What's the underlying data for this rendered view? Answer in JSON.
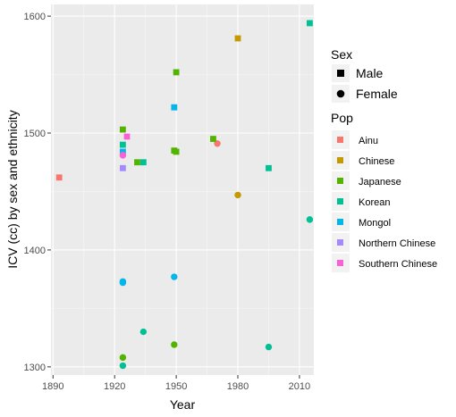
{
  "chart_data": {
    "type": "scatter",
    "xlabel": "Year",
    "ylabel": "ICV (cc) by sex and ethnicity",
    "xlim": [
      1889,
      2017
    ],
    "ylim": [
      1293,
      1610
    ],
    "x_ticks": [
      1890,
      1920,
      1950,
      1980,
      2010
    ],
    "y_ticks": [
      1300,
      1400,
      1500,
      1600
    ],
    "grid": true,
    "legend_placement": "right",
    "legend_sex": {
      "title": "Sex",
      "entries": [
        {
          "label": "Male",
          "shape": "square"
        },
        {
          "label": "Female",
          "shape": "circle"
        }
      ]
    },
    "legend_pop": {
      "title": "Pop",
      "entries": [
        {
          "label": "Ainu",
          "color": "#F8766D"
        },
        {
          "label": "Chinese",
          "color": "#C49A00"
        },
        {
          "label": "Japanese",
          "color": "#53B400"
        },
        {
          "label": "Korean",
          "color": "#00C094"
        },
        {
          "label": "Mongol",
          "color": "#00B6EB"
        },
        {
          "label": "Northern Chinese",
          "color": "#A58AFF"
        },
        {
          "label": "Southern Chinese",
          "color": "#FB61D7"
        }
      ]
    },
    "points": [
      {
        "x": 1893,
        "y": 1462,
        "pop": "Ainu",
        "sex": "Male"
      },
      {
        "x": 1970,
        "y": 1491,
        "pop": "Ainu",
        "sex": "Female"
      },
      {
        "x": 1980,
        "y": 1581,
        "pop": "Chinese",
        "sex": "Male"
      },
      {
        "x": 1980,
        "y": 1447,
        "pop": "Chinese",
        "sex": "Female"
      },
      {
        "x": 1924,
        "y": 1503,
        "pop": "Japanese",
        "sex": "Male"
      },
      {
        "x": 1931,
        "y": 1475,
        "pop": "Japanese",
        "sex": "Male"
      },
      {
        "x": 1949,
        "y": 1485,
        "pop": "Japanese",
        "sex": "Male"
      },
      {
        "x": 1950,
        "y": 1484,
        "pop": "Japanese",
        "sex": "Male"
      },
      {
        "x": 1950,
        "y": 1552,
        "pop": "Japanese",
        "sex": "Male"
      },
      {
        "x": 1968,
        "y": 1495,
        "pop": "Japanese",
        "sex": "Male"
      },
      {
        "x": 1924,
        "y": 1308,
        "pop": "Japanese",
        "sex": "Female"
      },
      {
        "x": 1949,
        "y": 1319,
        "pop": "Japanese",
        "sex": "Female"
      },
      {
        "x": 1924,
        "y": 1490,
        "pop": "Korean",
        "sex": "Male"
      },
      {
        "x": 1934,
        "y": 1475,
        "pop": "Korean",
        "sex": "Male"
      },
      {
        "x": 1995,
        "y": 1470,
        "pop": "Korean",
        "sex": "Male"
      },
      {
        "x": 2015,
        "y": 1594,
        "pop": "Korean",
        "sex": "Male"
      },
      {
        "x": 1924,
        "y": 1301,
        "pop": "Korean",
        "sex": "Female"
      },
      {
        "x": 1934,
        "y": 1330,
        "pop": "Korean",
        "sex": "Female"
      },
      {
        "x": 1995,
        "y": 1317,
        "pop": "Korean",
        "sex": "Female"
      },
      {
        "x": 2015,
        "y": 1426,
        "pop": "Korean",
        "sex": "Female"
      },
      {
        "x": 1924,
        "y": 1484,
        "pop": "Mongol",
        "sex": "Male"
      },
      {
        "x": 1949,
        "y": 1522,
        "pop": "Mongol",
        "sex": "Male"
      },
      {
        "x": 1924,
        "y": 1373,
        "pop": "Mongol",
        "sex": "Female"
      },
      {
        "x": 1924,
        "y": 1372,
        "pop": "Mongol",
        "sex": "Female"
      },
      {
        "x": 1949,
        "y": 1377,
        "pop": "Mongol",
        "sex": "Female"
      },
      {
        "x": 1924,
        "y": 1470,
        "pop": "Northern Chinese",
        "sex": "Male"
      },
      {
        "x": 1926,
        "y": 1497,
        "pop": "Southern Chinese",
        "sex": "Male"
      },
      {
        "x": 1924,
        "y": 1481,
        "pop": "Southern Chinese",
        "sex": "Female"
      }
    ]
  }
}
